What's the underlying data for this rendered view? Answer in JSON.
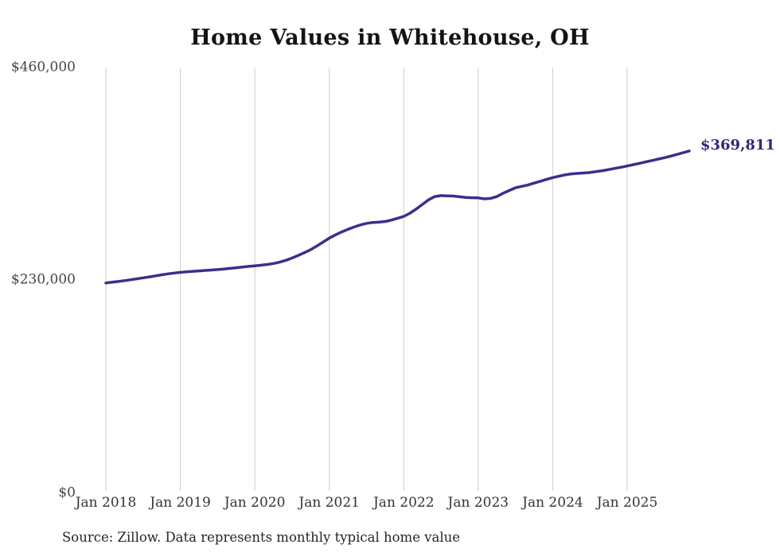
{
  "chart_data": {
    "type": "line",
    "title": "Home Values in Whitehouse, OH",
    "source": "Source: Zillow. Data represents monthly typical home value",
    "end_label": "$369,811",
    "latest_value": 369811,
    "xlabel": "",
    "ylabel": "",
    "ylim": [
      0,
      460000
    ],
    "grid": "vertical-only",
    "legend": "none",
    "y_ticks": [
      {
        "label": "$0",
        "value": 0
      },
      {
        "label": "$230,000",
        "value": 230000
      },
      {
        "label": "$460,000",
        "value": 460000
      }
    ],
    "x_ticks": [
      "Jan 2018",
      "Jan 2019",
      "Jan 2020",
      "Jan 2021",
      "Jan 2022",
      "Jan 2023",
      "Jan 2024",
      "Jan 2025"
    ],
    "months": [
      "2018-01",
      "2018-02",
      "2018-03",
      "2018-04",
      "2018-05",
      "2018-06",
      "2018-07",
      "2018-08",
      "2018-09",
      "2018-10",
      "2018-11",
      "2018-12",
      "2019-01",
      "2019-02",
      "2019-03",
      "2019-04",
      "2019-05",
      "2019-06",
      "2019-07",
      "2019-08",
      "2019-09",
      "2019-10",
      "2019-11",
      "2019-12",
      "2020-01",
      "2020-02",
      "2020-03",
      "2020-04",
      "2020-05",
      "2020-06",
      "2020-07",
      "2020-08",
      "2020-09",
      "2020-10",
      "2020-11",
      "2020-12",
      "2021-01",
      "2021-02",
      "2021-03",
      "2021-04",
      "2021-05",
      "2021-06",
      "2021-07",
      "2021-08",
      "2021-09",
      "2021-10",
      "2021-11",
      "2021-12",
      "2022-01",
      "2022-02",
      "2022-03",
      "2022-04",
      "2022-05",
      "2022-06",
      "2022-07",
      "2022-08",
      "2022-09",
      "2022-10",
      "2022-11",
      "2022-12",
      "2023-01",
      "2023-02",
      "2023-03",
      "2023-04",
      "2023-05",
      "2023-06",
      "2023-07",
      "2023-08",
      "2023-09",
      "2023-10",
      "2023-11",
      "2023-12",
      "2024-01",
      "2024-02",
      "2024-03",
      "2024-04",
      "2024-05",
      "2024-06",
      "2024-07",
      "2024-08",
      "2024-09",
      "2024-10",
      "2024-11",
      "2024-12",
      "2025-01",
      "2025-02",
      "2025-03",
      "2025-04",
      "2025-05",
      "2025-06",
      "2025-07",
      "2025-08",
      "2025-09",
      "2025-10",
      "2025-11"
    ],
    "values": [
      227000,
      227800,
      228600,
      229500,
      230500,
      231500,
      232500,
      233600,
      234700,
      235800,
      236800,
      237700,
      238500,
      239100,
      239600,
      240000,
      240500,
      241000,
      241500,
      242100,
      242800,
      243500,
      244200,
      244900,
      245500,
      246200,
      247000,
      248000,
      249500,
      251500,
      254000,
      256800,
      259800,
      263000,
      267000,
      271200,
      275500,
      279000,
      282200,
      285000,
      287500,
      289800,
      291500,
      292400,
      292800,
      293500,
      295000,
      297000,
      299000,
      302500,
      307000,
      312000,
      317000,
      320500,
      321500,
      321300,
      321000,
      320200,
      319500,
      319200,
      319000,
      318000,
      318500,
      320500,
      324000,
      327000,
      330000,
      331500,
      333000,
      335000,
      337000,
      339000,
      341000,
      342500,
      344000,
      345000,
      345500,
      346000,
      346500,
      347500,
      348500,
      349700,
      351000,
      352200,
      353500,
      355000,
      356500,
      358000,
      359500,
      361000,
      362500,
      364200,
      366000,
      367900,
      369811
    ],
    "colors": {
      "line": "#38308c",
      "end_label": "#2d2a7b",
      "grid": "#cccccc",
      "title": "#141414",
      "axis_text": "#3d3d3d",
      "background": "#ffffff"
    }
  }
}
